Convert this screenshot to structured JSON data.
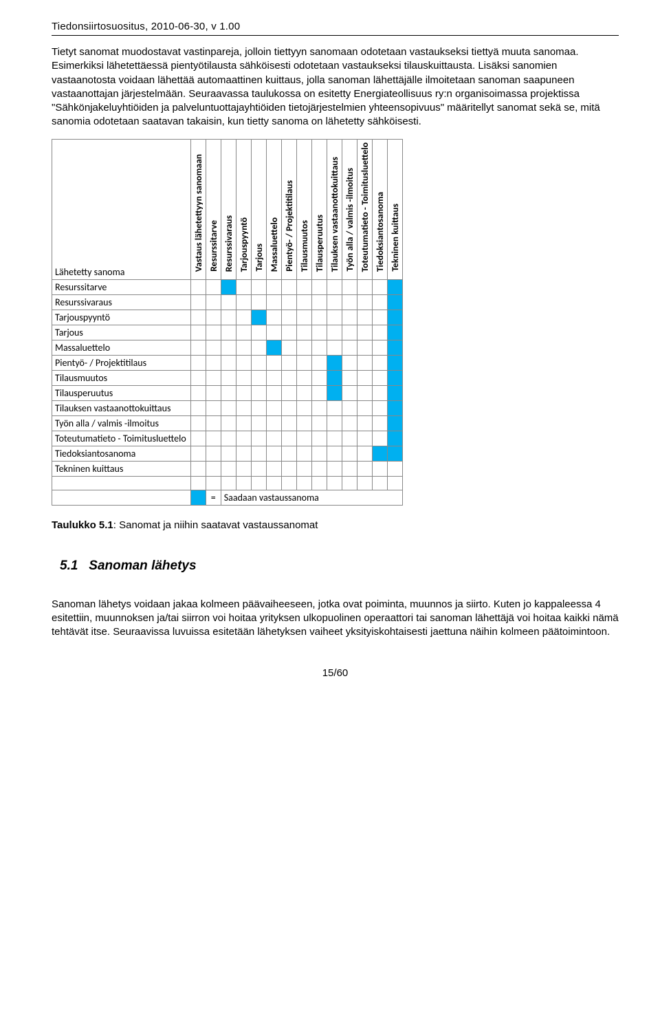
{
  "header": "Tiedonsiirtosuositus, 2010-06-30, v 1.00",
  "para1": "Tietyt sanomat muodostavat vastinpareja, jolloin tiettyyn sanomaan odotetaan vastaukseksi tiettyä muuta sanomaa. Esimerkiksi lähetettäessä pientyötilausta sähköisesti odotetaan vastaukseksi tilauskuittausta. Lisäksi sanomien vastaanotosta voidaan lähettää automaattinen kuittaus, jolla sanoman lähettäjälle ilmoitetaan sanoman saapuneen vastaanottajan järjestelmään. Seuraavassa taulukossa on esitetty Energiateollisuus ry:n organisoimassa projektissa \"Sähkönjakeluyhtiöiden ja palveluntuottajayhtiöiden tietojärjestelmien yhteensopivuus\" määritellyt sanomat sekä se, mitä sanomia odotetaan saatavan takaisin, kun tietty sanoma on lähetetty sähköisesti.",
  "matrix": {
    "corner": "Lähetetty sanoma",
    "columns": [
      "Vastaus lähetettyyn sanomaan",
      "Resurssitarve",
      "Resurssivaraus",
      "Tarjouspyyntö",
      "Tarjous",
      "Massaluettelo",
      "Pientyö- / Projektitilaus",
      "Tilausmuutos",
      "Tilausperuutus",
      "Tilauksen vastaanottokuittaus",
      "Työn alla / valmis -ilmoitus",
      "Toteutumatieto - Toimitusluettelo",
      "Tiedoksiantosanoma",
      "Tekninen kuittaus"
    ],
    "rows": [
      {
        "label": "Resurssitarve",
        "cells": [
          0,
          0,
          1,
          0,
          0,
          0,
          0,
          0,
          0,
          0,
          0,
          0,
          0,
          1
        ]
      },
      {
        "label": "Resurssivaraus",
        "cells": [
          0,
          0,
          0,
          0,
          0,
          0,
          0,
          0,
          0,
          0,
          0,
          0,
          0,
          1
        ]
      },
      {
        "label": "Tarjouspyyntö",
        "cells": [
          0,
          0,
          0,
          0,
          1,
          0,
          0,
          0,
          0,
          0,
          0,
          0,
          0,
          1
        ]
      },
      {
        "label": "Tarjous",
        "cells": [
          0,
          0,
          0,
          0,
          0,
          0,
          0,
          0,
          0,
          0,
          0,
          0,
          0,
          1
        ]
      },
      {
        "label": "Massaluettelo",
        "cells": [
          0,
          0,
          0,
          0,
          0,
          1,
          0,
          0,
          0,
          0,
          0,
          0,
          0,
          1
        ]
      },
      {
        "label": "Pientyö- / Projektitilaus",
        "cells": [
          0,
          0,
          0,
          0,
          0,
          0,
          0,
          0,
          0,
          1,
          0,
          0,
          0,
          1
        ]
      },
      {
        "label": "Tilausmuutos",
        "cells": [
          0,
          0,
          0,
          0,
          0,
          0,
          0,
          0,
          0,
          1,
          0,
          0,
          0,
          1
        ]
      },
      {
        "label": "Tilausperuutus",
        "cells": [
          0,
          0,
          0,
          0,
          0,
          0,
          0,
          0,
          0,
          1,
          0,
          0,
          0,
          1
        ]
      },
      {
        "label": "Tilauksen vastaanottokuittaus",
        "cells": [
          0,
          0,
          0,
          0,
          0,
          0,
          0,
          0,
          0,
          0,
          0,
          0,
          0,
          1
        ]
      },
      {
        "label": "Työn alla / valmis -ilmoitus",
        "cells": [
          0,
          0,
          0,
          0,
          0,
          0,
          0,
          0,
          0,
          0,
          0,
          0,
          0,
          1
        ]
      },
      {
        "label": "Toteutumatieto - Toimitusluettelo",
        "cells": [
          0,
          0,
          0,
          0,
          0,
          0,
          0,
          0,
          0,
          0,
          0,
          0,
          0,
          1
        ]
      },
      {
        "label": "Tiedoksiantosanoma",
        "cells": [
          0,
          0,
          0,
          0,
          0,
          0,
          0,
          0,
          0,
          0,
          0,
          0,
          1,
          1
        ]
      },
      {
        "label": "Tekninen kuittaus",
        "cells": [
          0,
          0,
          0,
          0,
          0,
          0,
          0,
          0,
          0,
          0,
          0,
          0,
          0,
          0
        ]
      }
    ],
    "legend_eq": "=",
    "legend_text": "Saadaan vastaussanoma",
    "on_color": "#00b0f0"
  },
  "caption_bold": "Taulukko 5.1",
  "caption_rest": ": Sanomat ja niihin saatavat vastaussanomat",
  "section_num": "5.1",
  "section_title": "Sanoman lähetys",
  "para2": "Sanoman lähetys voidaan jakaa kolmeen päävaiheeseen, jotka ovat poiminta, muunnos ja siirto. Kuten jo kappaleessa 4 esitettiin, muunnoksen ja/tai siirron voi hoitaa yrityksen ulkopuolinen operaattori tai sanoman lähettäjä voi hoitaa kaikki nämä tehtävät itse. Seuraavissa luvuissa esitetään lähetyksen vaiheet yksityiskohtaisesti jaettuna näihin kolmeen päätoimintoon.",
  "page_number": "15/60"
}
